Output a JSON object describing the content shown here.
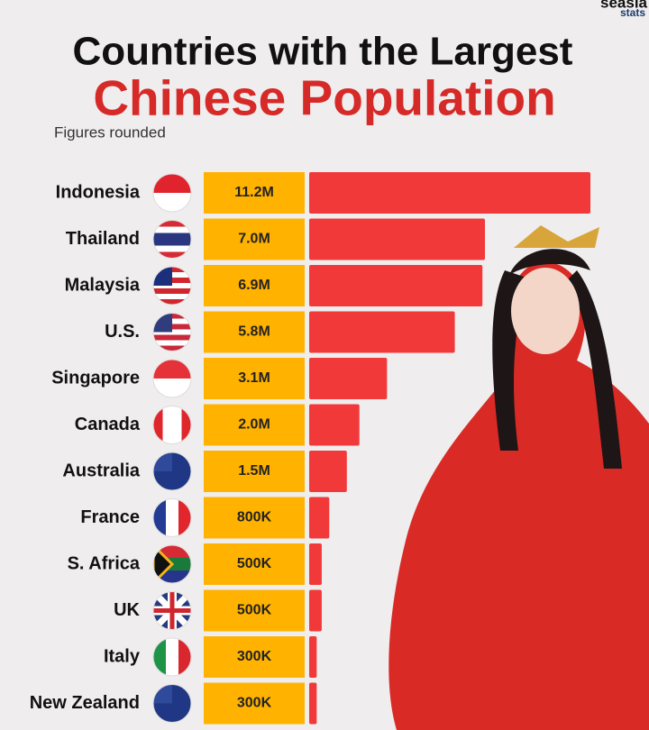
{
  "chart_data": {
    "type": "bar",
    "title": "Countries with the Largest",
    "title_highlight": "Chinese Population",
    "subtitle": "Figures rounded",
    "brand": [
      "seasia",
      "stats"
    ],
    "categories": [
      "Indonesia",
      "Thailand",
      "Malaysia",
      "U.S.",
      "Singapore",
      "Canada",
      "Australia",
      "France",
      "S. Africa",
      "UK",
      "Italy",
      "New Zealand"
    ],
    "values": [
      11200000,
      7000000,
      6900000,
      5800000,
      3100000,
      2000000,
      1500000,
      800000,
      500000,
      500000,
      300000,
      300000
    ],
    "value_labels": [
      "11.2M",
      "7.0M",
      "6.9M",
      "5.8M",
      "3.1M",
      "2.0M",
      "1.5M",
      "800K",
      "500K",
      "500K",
      "300K",
      "300K"
    ],
    "color": "#f2393a",
    "label_box_color": "#ffb300"
  }
}
